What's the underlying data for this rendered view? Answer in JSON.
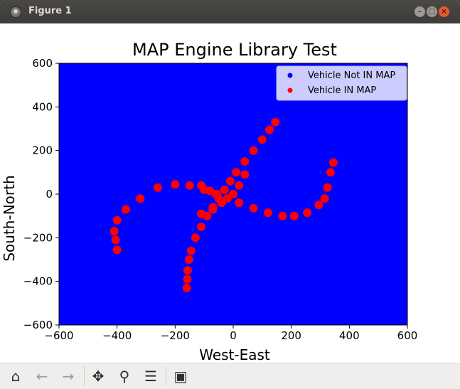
{
  "window": {
    "title": "Figure 1"
  },
  "toolbar": {
    "buttons": [
      {
        "name": "home-icon",
        "glyph": "⌂",
        "enabled": true
      },
      {
        "name": "back-arrow-icon",
        "glyph": "←",
        "enabled": false
      },
      {
        "name": "forward-arrow-icon",
        "glyph": "→",
        "enabled": false
      },
      {
        "name": "pan-icon",
        "glyph": "✥",
        "enabled": true
      },
      {
        "name": "zoom-icon",
        "glyph": "⚲",
        "enabled": true
      },
      {
        "name": "configure-subplots-icon",
        "glyph": "☰",
        "enabled": true
      },
      {
        "name": "save-icon",
        "glyph": "▣",
        "enabled": true
      }
    ]
  },
  "chart_data": {
    "type": "scatter",
    "title": "MAP Engine Library Test",
    "xlabel": "West-East",
    "ylabel": "South-North",
    "xlim": [
      -600,
      600
    ],
    "ylim": [
      -600,
      600
    ],
    "xticks": [
      -600,
      -400,
      -200,
      0,
      200,
      400,
      600
    ],
    "yticks": [
      -600,
      -400,
      -200,
      0,
      200,
      400,
      600
    ],
    "xtick_labels": [
      "−600",
      "−400",
      "−200",
      "0",
      "200",
      "400",
      "600"
    ],
    "ytick_labels": [
      "−600",
      "−400",
      "−200",
      "0",
      "200",
      "400",
      "600"
    ],
    "background_color": "#0000ff",
    "grid": false,
    "legend_position": "top-right",
    "series": [
      {
        "name": "Vehicle Not IN MAP",
        "color": "#0000ff",
        "points": []
      },
      {
        "name": "Vehicle IN MAP",
        "color": "#ff0000",
        "points": [
          [
            -160,
            -430
          ],
          [
            -158,
            -390
          ],
          [
            -157,
            -350
          ],
          [
            -152,
            -300
          ],
          [
            -145,
            -260
          ],
          [
            -130,
            -200
          ],
          [
            -110,
            -150
          ],
          [
            -90,
            -100
          ],
          [
            -70,
            -60
          ],
          [
            -50,
            -20
          ],
          [
            -30,
            20
          ],
          [
            -10,
            60
          ],
          [
            10,
            100
          ],
          [
            40,
            150
          ],
          [
            70,
            200
          ],
          [
            100,
            250
          ],
          [
            125,
            295
          ],
          [
            145,
            330
          ],
          [
            -400,
            -255
          ],
          [
            -405,
            -210
          ],
          [
            -410,
            -170
          ],
          [
            -400,
            -120
          ],
          [
            -370,
            -70
          ],
          [
            -320,
            -20
          ],
          [
            -260,
            30
          ],
          [
            -200,
            45
          ],
          [
            -150,
            40
          ],
          [
            -100,
            20
          ],
          [
            -60,
            0
          ],
          [
            -20,
            -20
          ],
          [
            20,
            -40
          ],
          [
            70,
            -65
          ],
          [
            120,
            -85
          ],
          [
            170,
            -100
          ],
          [
            210,
            -100
          ],
          [
            255,
            -85
          ],
          [
            295,
            -50
          ],
          [
            315,
            -20
          ],
          [
            325,
            30
          ],
          [
            335,
            100
          ],
          [
            345,
            145
          ],
          [
            -110,
            40
          ],
          [
            -80,
            15
          ],
          [
            -55,
            0
          ],
          [
            -110,
            -90
          ],
          [
            -70,
            -70
          ],
          [
            -40,
            -40
          ],
          [
            0,
            0
          ],
          [
            20,
            40
          ],
          [
            40,
            90
          ]
        ]
      }
    ]
  }
}
